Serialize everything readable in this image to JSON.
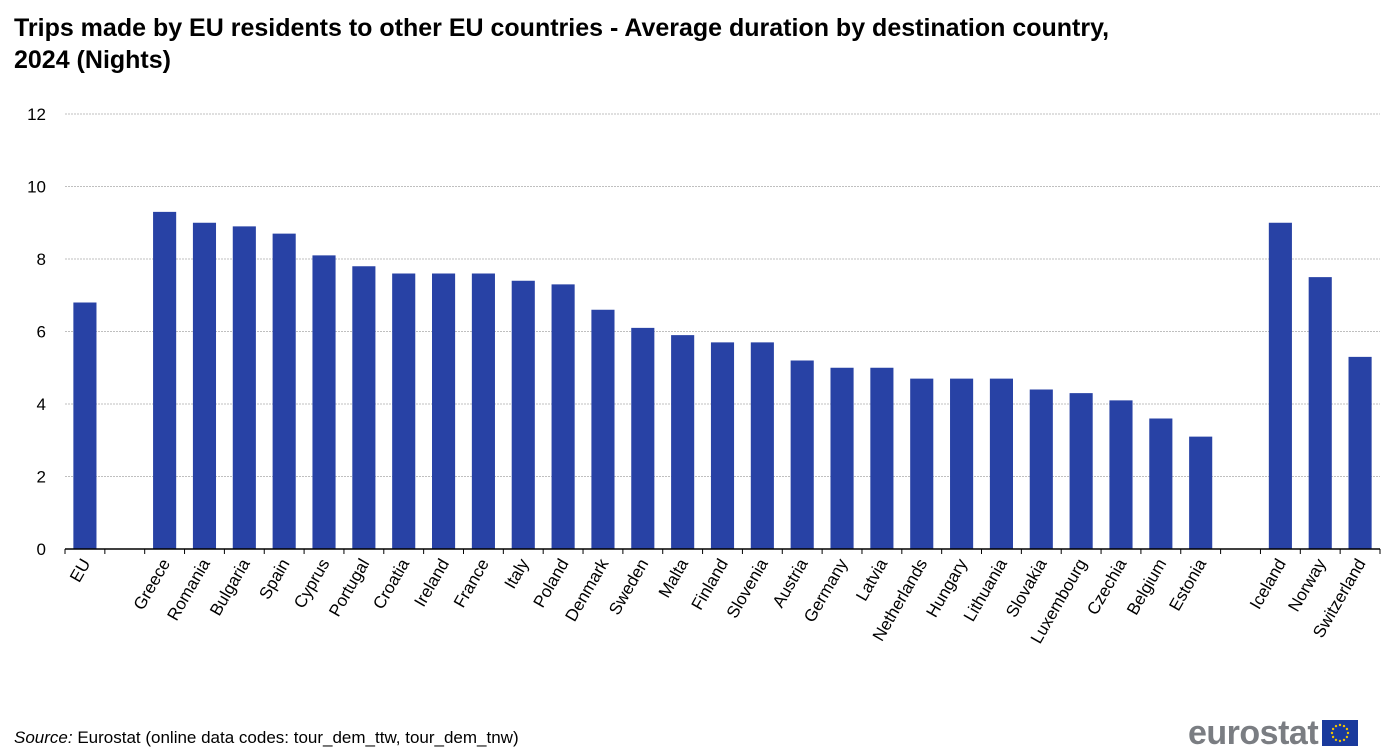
{
  "chart_data": {
    "type": "bar",
    "title": "Trips made by EU residents to other EU countries - Average duration by destination country, 2024 (Nights)",
    "xlabel": "",
    "ylabel": "",
    "ylim": [
      0,
      12
    ],
    "yticks": [
      0,
      2,
      4,
      6,
      8,
      10,
      12
    ],
    "grid": true,
    "bar_color": "#2842a5",
    "categories": [
      "EU",
      "",
      "Greece",
      "Romania",
      "Bulgaria",
      "Spain",
      "Cyprus",
      "Portugal",
      "Croatia",
      "Ireland",
      "France",
      "Italy",
      "Poland",
      "Denmark",
      "Sweden",
      "Malta",
      "Finland",
      "Slovenia",
      "Austria",
      "Germany",
      "Latvia",
      "Netherlands",
      "Hungary",
      "Lithuania",
      "Slovakia",
      "Luxembourg",
      "Czechia",
      "Belgium",
      "Estonia",
      "",
      "Iceland",
      "Norway",
      "Switzerland"
    ],
    "values": [
      6.8,
      null,
      9.3,
      9.0,
      8.9,
      8.7,
      8.1,
      7.8,
      7.6,
      7.6,
      7.6,
      7.4,
      7.3,
      6.6,
      6.1,
      5.9,
      5.7,
      5.7,
      5.2,
      5.0,
      5.0,
      4.7,
      4.7,
      4.7,
      4.4,
      4.3,
      4.1,
      3.6,
      3.1,
      null,
      9.0,
      7.5,
      5.3
    ]
  },
  "source": {
    "label": "Source:",
    "text": " Eurostat (online data codes: tour_dem_ttw, tour_dem_tnw)"
  },
  "logo": {
    "text": "eurostat",
    "flag_color": "#1a3a9c",
    "star_color": "#f2c200"
  }
}
